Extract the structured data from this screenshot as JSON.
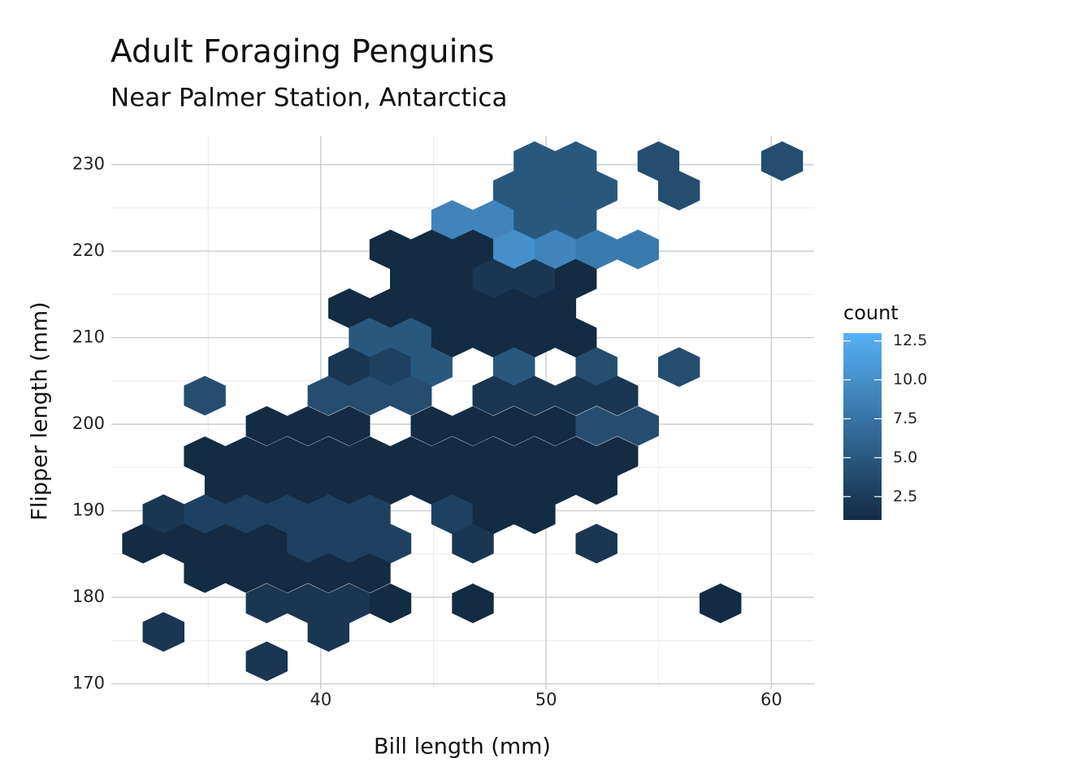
{
  "chart_data": {
    "type": "hexbin",
    "title": "Adult Foraging Penguins",
    "subtitle": "Near Palmer Station, Antarctica",
    "x_label": "Bill length (mm)",
    "y_label": "Flipper length (mm)",
    "xlim": [
      30.7,
      61.9
    ],
    "xticks": [
      40,
      50,
      60
    ],
    "ylim": [
      169.4,
      233.3
    ],
    "yticks": [
      170,
      180,
      190,
      200,
      210,
      220,
      230
    ],
    "grid": true,
    "x": [
      49.49,
      51.32,
      54.99,
      60.48,
      48.58,
      50.41,
      52.24,
      55.9,
      45.83,
      47.66,
      49.49,
      51.32,
      43.09,
      44.92,
      46.75,
      48.58,
      50.41,
      52.24,
      54.08,
      44.0,
      45.83,
      47.66,
      49.49,
      51.32,
      41.26,
      43.09,
      44.92,
      46.75,
      48.58,
      50.41,
      42.17,
      44.0,
      45.83,
      47.66,
      49.49,
      51.32,
      41.26,
      43.09,
      44.92,
      48.58,
      52.24,
      55.9,
      34.85,
      40.34,
      42.17,
      44.0,
      47.66,
      49.49,
      51.32,
      53.16,
      37.6,
      39.43,
      41.26,
      44.92,
      46.75,
      48.58,
      50.41,
      52.24,
      54.08,
      34.85,
      36.68,
      38.51,
      40.34,
      42.17,
      44.0,
      45.83,
      47.66,
      49.49,
      51.32,
      53.16,
      35.77,
      37.6,
      39.43,
      41.26,
      43.09,
      44.92,
      46.75,
      48.58,
      50.41,
      52.24,
      33.02,
      34.85,
      36.68,
      38.51,
      40.34,
      42.17,
      45.83,
      47.66,
      49.49,
      32.11,
      33.94,
      35.77,
      37.6,
      39.43,
      41.26,
      43.09,
      46.75,
      52.24,
      34.85,
      36.68,
      38.51,
      40.34,
      42.17,
      37.6,
      39.43,
      41.26,
      43.09,
      46.75,
      57.74,
      33.02,
      40.34,
      37.6
    ],
    "y": [
      230.4,
      230.4,
      230.4,
      230.4,
      227.0,
      227.0,
      227.0,
      227.0,
      223.6,
      223.6,
      223.6,
      223.6,
      220.2,
      220.2,
      220.2,
      220.2,
      220.2,
      220.2,
      220.2,
      216.8,
      216.8,
      216.8,
      216.8,
      216.8,
      213.4,
      213.4,
      213.4,
      213.4,
      213.4,
      213.4,
      210.0,
      210.0,
      210.0,
      210.0,
      210.0,
      210.0,
      206.6,
      206.6,
      206.6,
      206.6,
      206.6,
      206.6,
      203.3,
      203.3,
      203.3,
      203.3,
      203.3,
      203.3,
      203.3,
      203.3,
      199.8,
      199.8,
      199.8,
      199.8,
      199.8,
      199.8,
      199.8,
      199.8,
      199.8,
      196.3,
      196.3,
      196.3,
      196.3,
      196.3,
      196.3,
      196.3,
      196.3,
      196.3,
      196.3,
      196.3,
      193.0,
      193.0,
      193.0,
      193.0,
      193.0,
      193.0,
      193.0,
      193.0,
      193.0,
      193.0,
      189.6,
      189.6,
      189.6,
      189.6,
      189.6,
      189.6,
      189.6,
      189.6,
      189.6,
      186.2,
      186.2,
      186.2,
      186.2,
      186.2,
      186.2,
      186.2,
      186.2,
      186.2,
      182.8,
      182.8,
      182.8,
      182.8,
      182.8,
      179.3,
      179.3,
      179.3,
      179.3,
      179.3,
      179.3,
      176.0,
      176.0,
      172.6
    ],
    "values": [
      5,
      5,
      4,
      4,
      5,
      5,
      5,
      4,
      9,
      9,
      5,
      5,
      1,
      1,
      1,
      10,
      9,
      8,
      8,
      1,
      1,
      2,
      2,
      1,
      1,
      1,
      1,
      1,
      1,
      1,
      5,
      5,
      1,
      1,
      1,
      1,
      2,
      3,
      5,
      5,
      4,
      4,
      4,
      4,
      4,
      4,
      2,
      2,
      2,
      2,
      1,
      1,
      1,
      1,
      1,
      1,
      1,
      4,
      4,
      1,
      1,
      1,
      1,
      1,
      1,
      1,
      1,
      1,
      1,
      1,
      1,
      1,
      1,
      1,
      1,
      1,
      1,
      1,
      1,
      1,
      2,
      3,
      3,
      3,
      3,
      3,
      3,
      1,
      1,
      1,
      1,
      1,
      1,
      3,
      3,
      3,
      2,
      2,
      1,
      1,
      1,
      1,
      1,
      2,
      2,
      2,
      1,
      1,
      1,
      2,
      2,
      2
    ],
    "color_scale": {
      "title": "count",
      "low": "#132B43",
      "high": "#56B1F7",
      "lim": [
        1,
        13
      ],
      "ticks": [
        2.5,
        {
          "value": 5,
          "label": "5.0"
        },
        7.5,
        {
          "value": 10,
          "label": "10.0"
        },
        12.5
      ]
    }
  }
}
